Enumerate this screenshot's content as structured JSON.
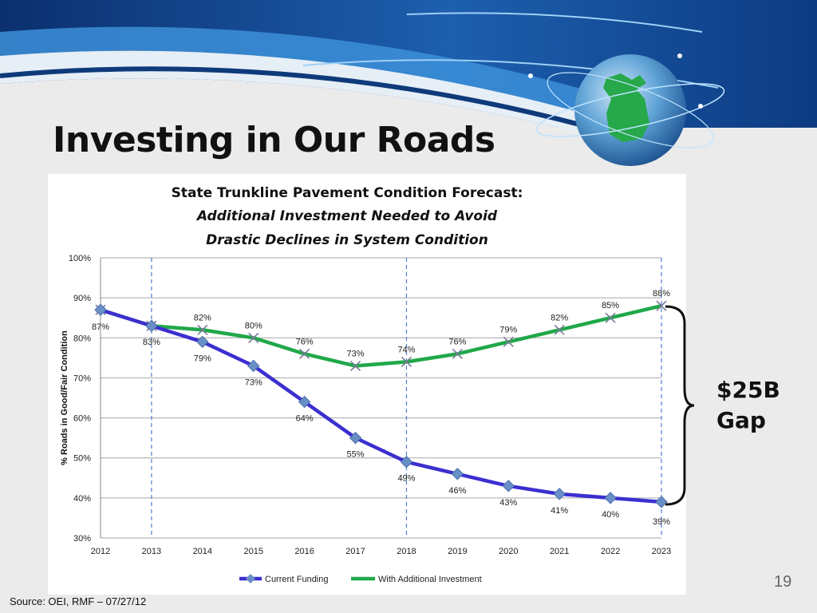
{
  "slide": {
    "title": "Investing in Our Roads",
    "page_number": "19",
    "source": "Source:  OEI, RMF – 07/27/12",
    "gap_label_line1": "$25B",
    "gap_label_line2": "Gap"
  },
  "colors": {
    "current_funding": "#3b2fd0",
    "additional_investment": "#20a84a",
    "marker": "#6a8fc6",
    "x_marker": "#7a7a9a",
    "dashed_lines": "#4f7fd1",
    "grid": "#a6a6a6"
  },
  "chart_data": {
    "type": "line",
    "title": "State Trunkline Pavement Condition Forecast:",
    "subtitle_line1": "Additional Investment Needed to Avoid",
    "subtitle_line2": "Drastic Declines in System Condition",
    "xlabel": "",
    "ylabel": "% Roads in Good/Fair Condition",
    "x": [
      "2012",
      "2013",
      "2014",
      "2015",
      "2016",
      "2017",
      "2018",
      "2019",
      "2020",
      "2021",
      "2022",
      "2023"
    ],
    "yticks": [
      "30%",
      "40%",
      "50%",
      "60%",
      "70%",
      "80%",
      "90%",
      "100%"
    ],
    "ylim": [
      30,
      100
    ],
    "grid": "horizontal",
    "legend_position": "bottom",
    "dashed_vertical_markers_at": [
      "2013",
      "2018",
      "2023"
    ],
    "series": [
      {
        "name": "Current Funding",
        "values": [
          87,
          83,
          79,
          73,
          64,
          55,
          49,
          46,
          43,
          41,
          40,
          39
        ],
        "labels": [
          "87%",
          "83%",
          "79%",
          "73%",
          "64%",
          "55%",
          "49%",
          "46%",
          "43%",
          "41%",
          "40%",
          "39%"
        ],
        "marker": "diamond"
      },
      {
        "name": "With Additional Investment",
        "values": [
          87,
          83,
          82,
          80,
          76,
          73,
          74,
          76,
          79,
          82,
          85,
          88
        ],
        "labels": [
          "",
          "",
          "82%",
          "80%",
          "76%",
          "73%",
          "74%",
          "76%",
          "79%",
          "82%",
          "85%",
          "88%"
        ],
        "marker": "x"
      }
    ]
  }
}
